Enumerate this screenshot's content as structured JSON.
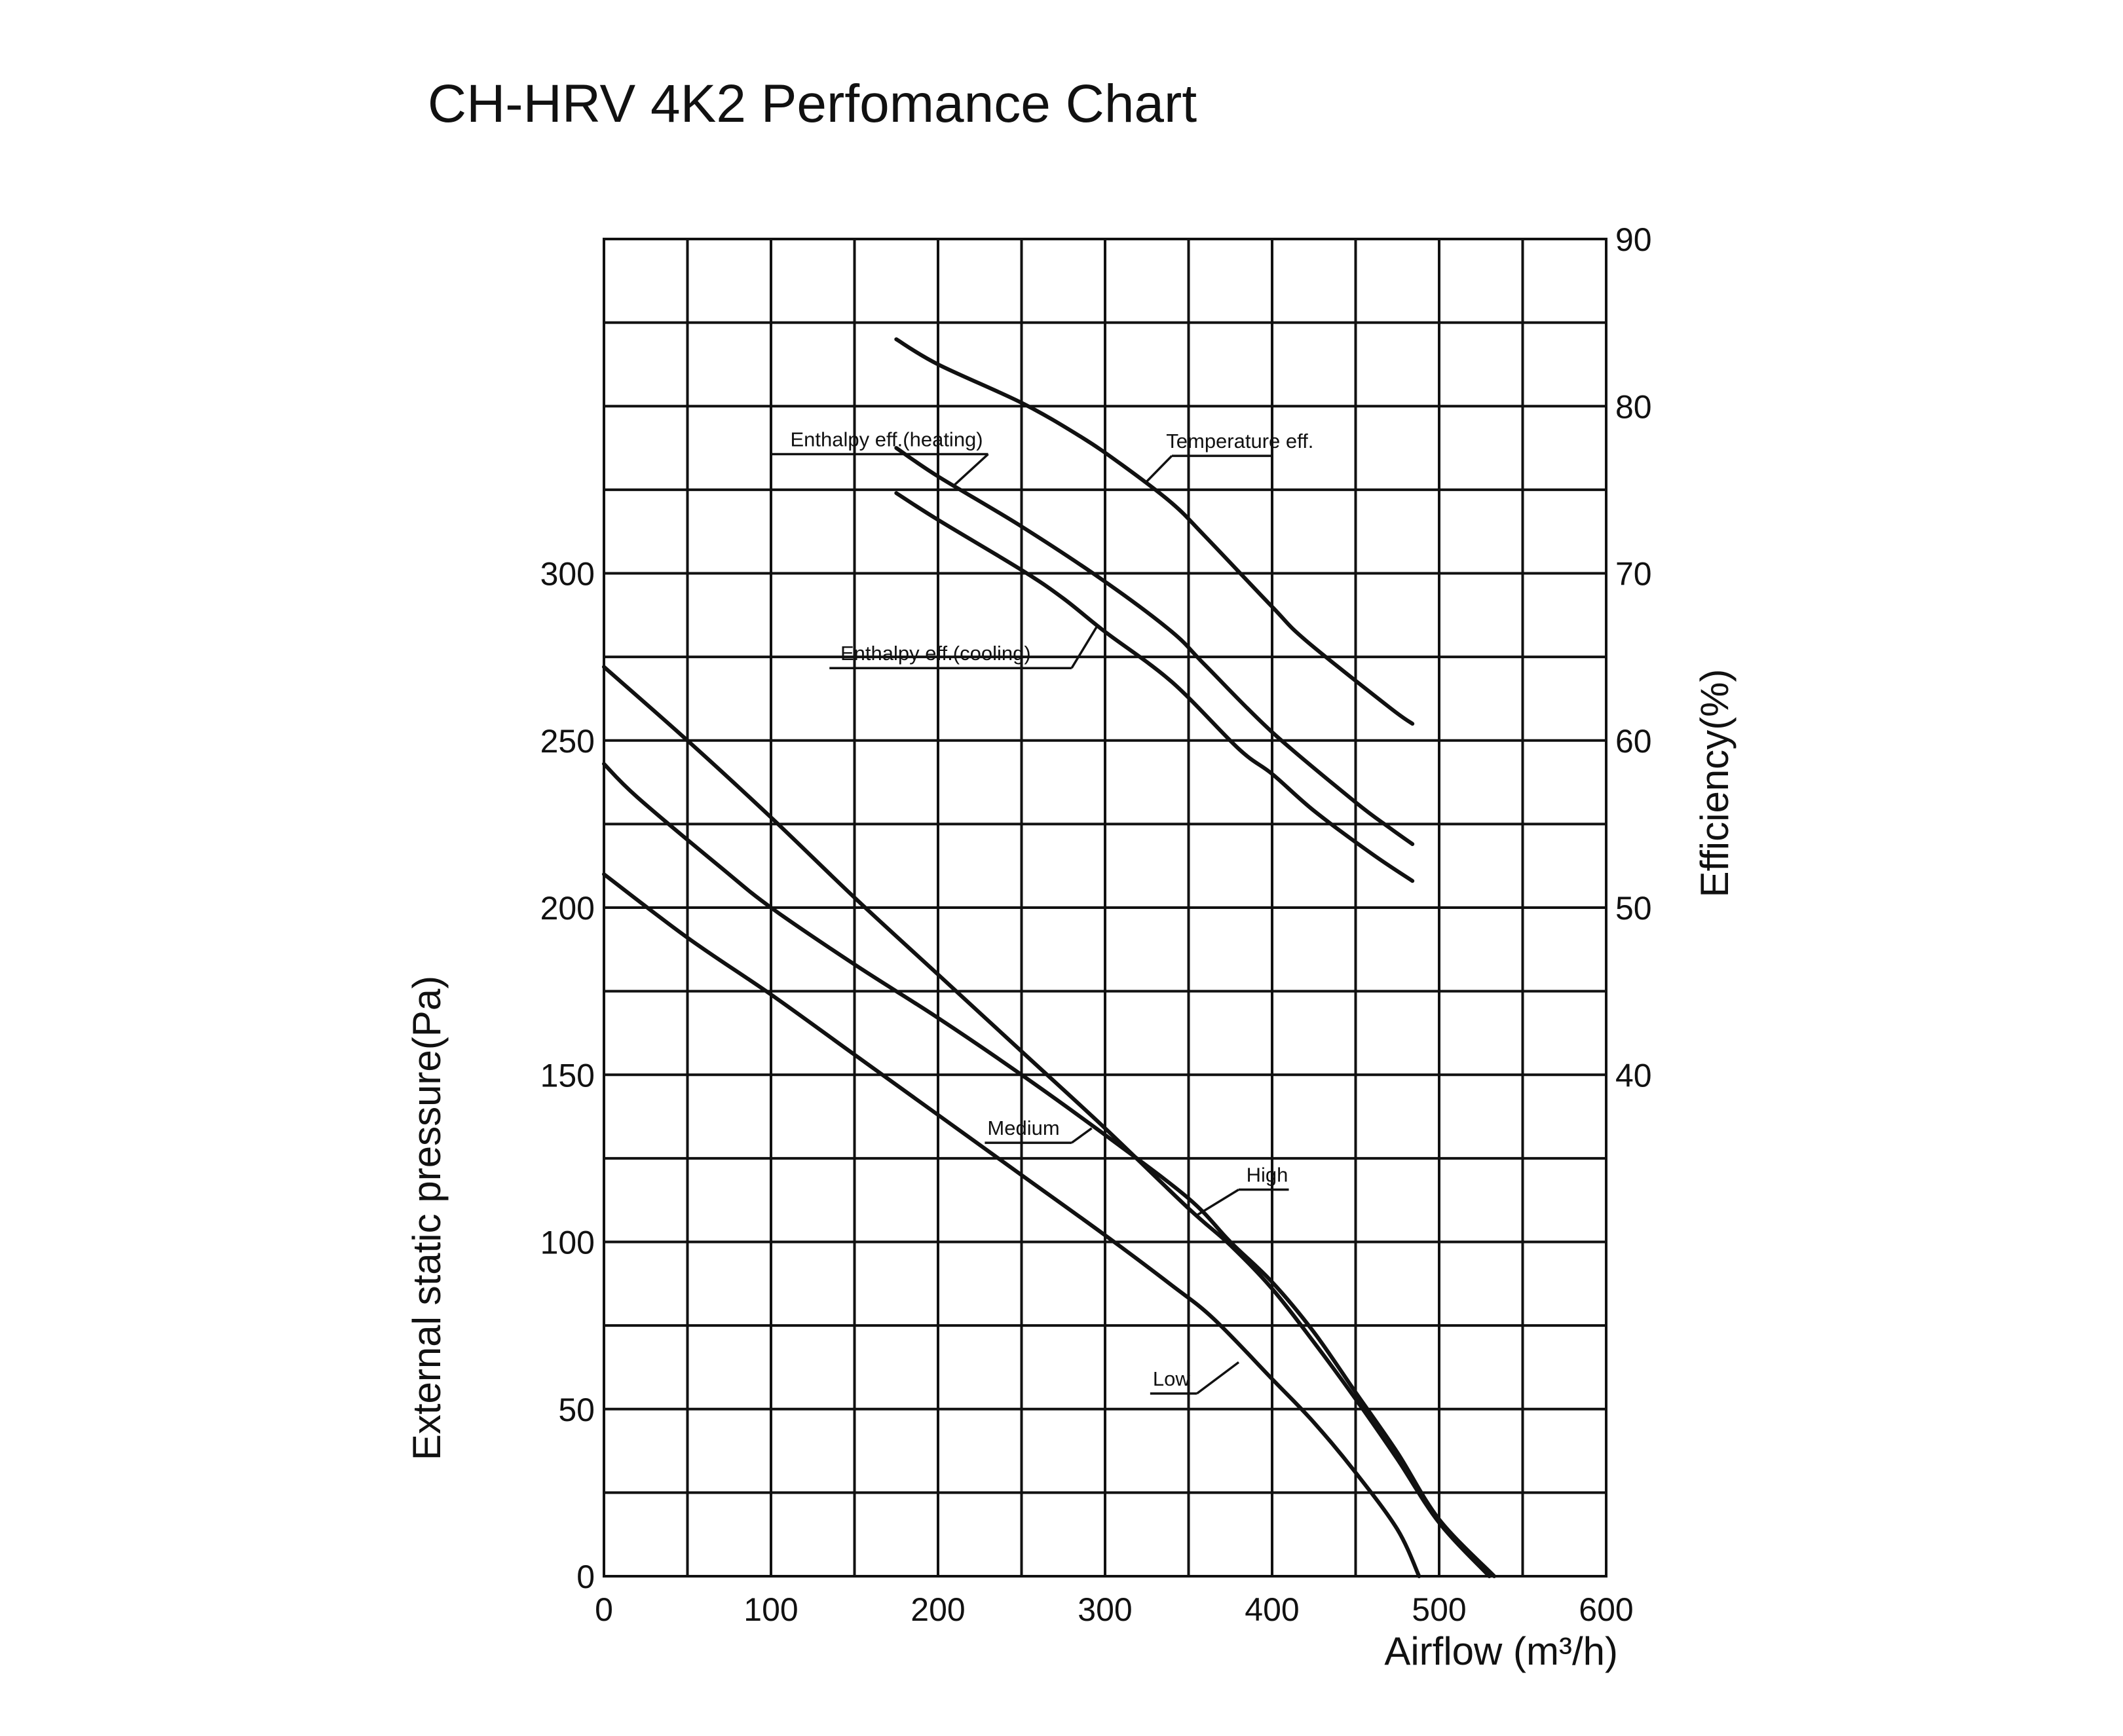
{
  "chart_data": {
    "type": "line",
    "title": "CH-HRV 4K2  Perfomance Chart",
    "xlabel": "Airflow (m³/h)",
    "ylabel_left": "External static pressure(Pa)",
    "ylabel_right": "Efficiency(%)",
    "xlim": [
      0,
      600
    ],
    "ylim_left": [
      0,
      400
    ],
    "ylim_right": [
      10,
      90
    ],
    "grid": true,
    "x_ticks": [
      "0",
      "100",
      "200",
      "300",
      "400",
      "500",
      "600"
    ],
    "y_left_ticks": [
      {
        "value": 0,
        "label": "0"
      },
      {
        "value": 50,
        "label": "50"
      },
      {
        "value": 100,
        "label": "100"
      },
      {
        "value": 150,
        "label": "150"
      },
      {
        "value": 200,
        "label": "200"
      },
      {
        "value": 250,
        "label": "250"
      },
      {
        "value": 300,
        "label": "300"
      }
    ],
    "y_right_ticks": [
      {
        "value": 40,
        "label": "40"
      },
      {
        "value": 50,
        "label": "50"
      },
      {
        "value": 60,
        "label": "60"
      },
      {
        "value": 70,
        "label": "70"
      },
      {
        "value": 80,
        "label": "80"
      },
      {
        "value": 90,
        "label": "90"
      }
    ],
    "pressure_series": [
      {
        "name": "High",
        "points": [
          [
            0,
            272
          ],
          [
            50,
            250
          ],
          [
            100,
            227
          ],
          [
            150,
            203
          ],
          [
            200,
            180
          ],
          [
            250,
            157
          ],
          [
            300,
            134
          ],
          [
            350,
            110
          ],
          [
            375,
            99
          ],
          [
            400,
            86
          ],
          [
            425,
            70
          ],
          [
            450,
            53
          ],
          [
            475,
            35
          ],
          [
            500,
            16
          ],
          [
            530,
            0
          ]
        ]
      },
      {
        "name": "Medium",
        "points": [
          [
            0,
            243
          ],
          [
            20,
            233
          ],
          [
            70,
            212
          ],
          [
            100,
            200
          ],
          [
            150,
            183
          ],
          [
            200,
            167
          ],
          [
            250,
            150
          ],
          [
            300,
            132
          ],
          [
            350,
            113
          ],
          [
            375,
            100
          ],
          [
            400,
            88
          ],
          [
            425,
            73
          ],
          [
            450,
            55
          ],
          [
            475,
            37
          ],
          [
            500,
            17
          ],
          [
            533,
            0
          ]
        ]
      },
      {
        "name": "Low",
        "points": [
          [
            0,
            210
          ],
          [
            50,
            191
          ],
          [
            100,
            174
          ],
          [
            150,
            156
          ],
          [
            200,
            138
          ],
          [
            250,
            120
          ],
          [
            300,
            102
          ],
          [
            340,
            87
          ],
          [
            365,
            77
          ],
          [
            400,
            59
          ],
          [
            425,
            46
          ],
          [
            450,
            31
          ],
          [
            475,
            14
          ],
          [
            488,
            0
          ]
        ]
      }
    ],
    "efficiency_series": [
      {
        "name": "Temperature eff.",
        "points": [
          [
            175,
            84
          ],
          [
            200,
            82.5
          ],
          [
            250,
            80.2
          ],
          [
            285,
            78.2
          ],
          [
            310,
            76.5
          ],
          [
            340,
            74.2
          ],
          [
            360,
            72.2
          ],
          [
            400,
            68
          ],
          [
            420,
            66
          ],
          [
            470,
            62
          ],
          [
            484,
            61
          ]
        ]
      },
      {
        "name": "Enthalpy eff.(heating)",
        "points": [
          [
            175,
            77.5
          ],
          [
            200,
            75.8
          ],
          [
            250,
            72.8
          ],
          [
            300,
            69.5
          ],
          [
            340,
            66.5
          ],
          [
            360,
            64.5
          ],
          [
            400,
            60.5
          ],
          [
            450,
            56.3
          ],
          [
            470,
            54.8
          ],
          [
            484,
            53.8
          ]
        ]
      },
      {
        "name": "Enthalpy eff.(cooling)",
        "points": [
          [
            175,
            74.8
          ],
          [
            200,
            73.2
          ],
          [
            250,
            70.2
          ],
          [
            275,
            68.5
          ],
          [
            300,
            66.5
          ],
          [
            340,
            63.5
          ],
          [
            380,
            59.5
          ],
          [
            400,
            58
          ],
          [
            425,
            55.8
          ],
          [
            460,
            53.2
          ],
          [
            484,
            51.6
          ]
        ]
      }
    ],
    "annotations": [
      {
        "text": "Enthalpy eff.(heating)",
        "series": "Enthalpy eff.(heating)"
      },
      {
        "text": "Temperature eff.",
        "series": "Temperature eff."
      },
      {
        "text": "Enthalpy eff.(cooling)",
        "series": "Enthalpy eff.(cooling)"
      },
      {
        "text": "Medium",
        "series": "Medium"
      },
      {
        "text": "High",
        "series": "High"
      },
      {
        "text": "Low",
        "series": "Low"
      }
    ]
  }
}
